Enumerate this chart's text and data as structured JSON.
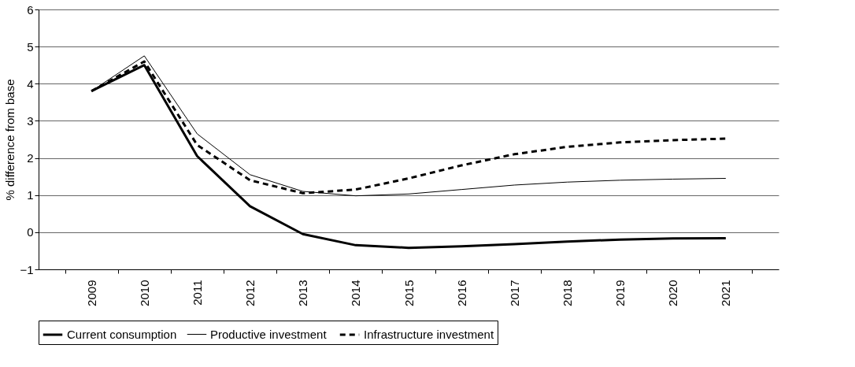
{
  "chart_data": {
    "type": "line",
    "ylabel": "% difference from base",
    "categories": [
      "2009",
      "2010",
      "2011",
      "2012",
      "2013",
      "2014",
      "2015",
      "2016",
      "2017",
      "2018",
      "2019",
      "2020",
      "2021"
    ],
    "series": [
      {
        "name": "Current consumption",
        "color": "#000000",
        "line_style": "solid",
        "values": [
          3.8,
          4.5,
          2.05,
          0.7,
          -0.05,
          -0.35,
          -0.42,
          -0.38,
          -0.32,
          -0.25,
          -0.2,
          -0.17,
          -0.16
        ]
      },
      {
        "name": "Productive investment",
        "color": "#000000",
        "line_style": "solid",
        "values": [
          3.8,
          4.75,
          2.65,
          1.55,
          1.1,
          0.98,
          1.03,
          1.15,
          1.27,
          1.35,
          1.4,
          1.43,
          1.45
        ]
      },
      {
        "name": "Infrastructure investment",
        "color": "#000000",
        "line_style": "dashed",
        "values": [
          3.8,
          4.6,
          2.35,
          1.4,
          1.05,
          1.15,
          1.45,
          1.8,
          2.1,
          2.3,
          2.42,
          2.48,
          2.52
        ]
      }
    ],
    "ylim": [
      -1,
      6
    ],
    "yticks": [
      -1,
      0,
      1,
      2,
      3,
      4,
      5,
      6
    ],
    "grid": "y",
    "legend": "bottom",
    "marker": "none"
  }
}
